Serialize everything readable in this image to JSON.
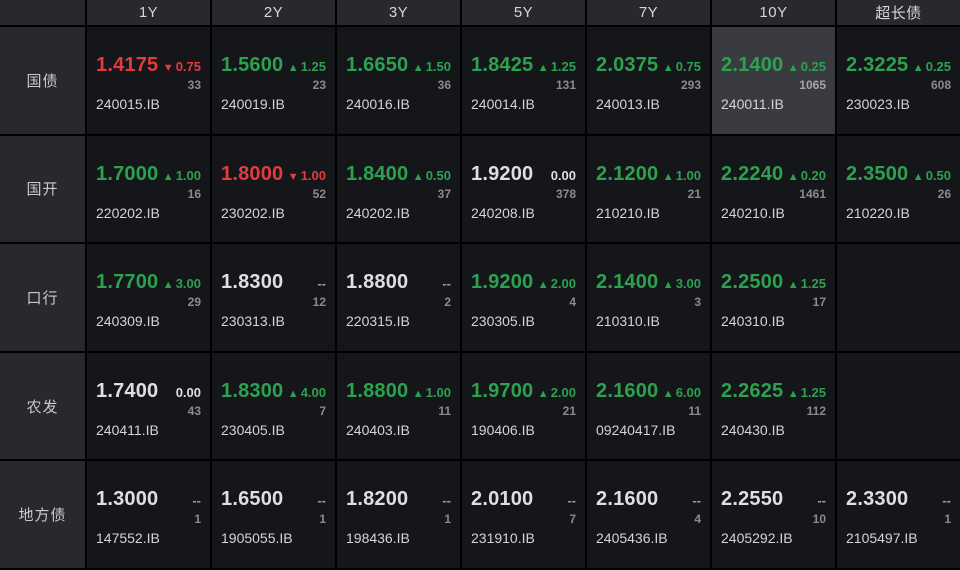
{
  "colors": {
    "up": "#2ca150",
    "down": "#e23b40",
    "neutral": "#dfdfe2",
    "muted": "#9b9b9e",
    "highlight_bg": "#3a3b41",
    "cell_bg": "#15161a",
    "panel_bg": "#28292d"
  },
  "header": {
    "columns": [
      "",
      "1Y",
      "2Y",
      "3Y",
      "5Y",
      "7Y",
      "10Y",
      "超长债"
    ]
  },
  "rows": [
    {
      "key": "treasury",
      "label": "国债",
      "cells": [
        {
          "value": "1.4175",
          "dir": "down",
          "change": "0.75",
          "count": "33",
          "code": "240015.IB"
        },
        {
          "value": "1.5600",
          "dir": "up",
          "change": "1.25",
          "count": "23",
          "code": "240019.IB"
        },
        {
          "value": "1.6650",
          "dir": "up",
          "change": "1.50",
          "count": "36",
          "code": "240016.IB"
        },
        {
          "value": "1.8425",
          "dir": "up",
          "change": "1.25",
          "count": "131",
          "code": "240014.IB"
        },
        {
          "value": "2.0375",
          "dir": "up",
          "change": "0.75",
          "count": "293",
          "code": "240013.IB"
        },
        {
          "value": "2.1400",
          "dir": "up",
          "change": "0.25",
          "count": "1065",
          "code": "240011.IB",
          "highlight": true
        },
        {
          "value": "2.3225",
          "dir": "up",
          "change": "0.25",
          "count": "608",
          "code": "230023.IB"
        }
      ]
    },
    {
      "key": "cdb",
      "label": "国开",
      "cells": [
        {
          "value": "1.7000",
          "dir": "up",
          "change": "1.00",
          "count": "16",
          "code": "220202.IB"
        },
        {
          "value": "1.8000",
          "dir": "down",
          "change": "1.00",
          "count": "52",
          "code": "230202.IB"
        },
        {
          "value": "1.8400",
          "dir": "up",
          "change": "0.50",
          "count": "37",
          "code": "240202.IB"
        },
        {
          "value": "1.9200",
          "dir": "flat",
          "change": "0.00",
          "count": "378",
          "code": "240208.IB"
        },
        {
          "value": "2.1200",
          "dir": "up",
          "change": "1.00",
          "count": "21",
          "code": "210210.IB"
        },
        {
          "value": "2.2240",
          "dir": "up",
          "change": "0.20",
          "count": "1461",
          "code": "240210.IB"
        },
        {
          "value": "2.3500",
          "dir": "up",
          "change": "0.50",
          "count": "26",
          "code": "210220.IB"
        }
      ]
    },
    {
      "key": "exim-bank",
      "label": "口行",
      "cells": [
        {
          "value": "1.7700",
          "dir": "up",
          "change": "3.00",
          "count": "29",
          "code": "240309.IB"
        },
        {
          "value": "1.8300",
          "dir": "none",
          "change": "--",
          "count": "12",
          "code": "230313.IB"
        },
        {
          "value": "1.8800",
          "dir": "none",
          "change": "--",
          "count": "2",
          "code": "220315.IB"
        },
        {
          "value": "1.9200",
          "dir": "up",
          "change": "2.00",
          "count": "4",
          "code": "230305.IB"
        },
        {
          "value": "2.1400",
          "dir": "up",
          "change": "3.00",
          "count": "3",
          "code": "210310.IB"
        },
        {
          "value": "2.2500",
          "dir": "up",
          "change": "1.25",
          "count": "17",
          "code": "240310.IB"
        },
        null
      ]
    },
    {
      "key": "adbc",
      "label": "农发",
      "cells": [
        {
          "value": "1.7400",
          "dir": "flat",
          "change": "0.00",
          "count": "43",
          "code": "240411.IB"
        },
        {
          "value": "1.8300",
          "dir": "up",
          "change": "4.00",
          "count": "7",
          "code": "230405.IB"
        },
        {
          "value": "1.8800",
          "dir": "up",
          "change": "1.00",
          "count": "11",
          "code": "240403.IB"
        },
        {
          "value": "1.9700",
          "dir": "up",
          "change": "2.00",
          "count": "21",
          "code": "190406.IB"
        },
        {
          "value": "2.1600",
          "dir": "up",
          "change": "6.00",
          "count": "11",
          "code": "09240417.IB"
        },
        {
          "value": "2.2625",
          "dir": "up",
          "change": "1.25",
          "count": "112",
          "code": "240430.IB"
        },
        null
      ]
    },
    {
      "key": "local-gov",
      "label": "地方债",
      "cells": [
        {
          "value": "1.3000",
          "dir": "none",
          "change": "--",
          "count": "1",
          "code": "147552.IB"
        },
        {
          "value": "1.6500",
          "dir": "none",
          "change": "--",
          "count": "1",
          "code": "1905055.IB"
        },
        {
          "value": "1.8200",
          "dir": "none",
          "change": "--",
          "count": "1",
          "code": "198436.IB"
        },
        {
          "value": "2.0100",
          "dir": "none",
          "change": "--",
          "count": "7",
          "code": "231910.IB"
        },
        {
          "value": "2.1600",
          "dir": "none",
          "change": "--",
          "count": "4",
          "code": "2405436.IB"
        },
        {
          "value": "2.2550",
          "dir": "none",
          "change": "--",
          "count": "10",
          "code": "2405292.IB"
        },
        {
          "value": "2.3300",
          "dir": "none",
          "change": "--",
          "count": "1",
          "code": "2105497.IB"
        }
      ]
    }
  ]
}
